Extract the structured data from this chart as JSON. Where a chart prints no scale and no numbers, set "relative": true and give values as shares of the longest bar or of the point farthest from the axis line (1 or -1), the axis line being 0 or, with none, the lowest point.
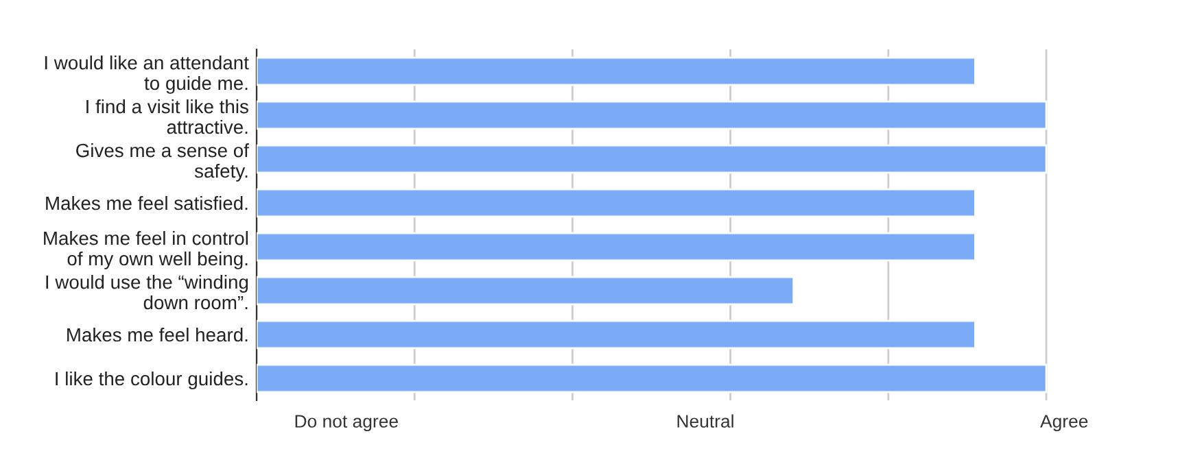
{
  "chart_data": {
    "type": "bar",
    "orientation": "horizontal",
    "relative": true,
    "categories": [
      "I would like an attendant\nto guide me.",
      "I find a visit like this\nattractive.",
      "Gives me a sense of\nsafety.",
      "Makes me feel satisfied.",
      "Makes me feel in control\nof my own well being.",
      "I would use the “winding\ndown room”.",
      "Makes me feel heard.",
      "I like the colour guides."
    ],
    "values": [
      0.91,
      1,
      1,
      0.91,
      0.91,
      0.68,
      0.91,
      1
    ],
    "color": "#7baaf7",
    "annotations": [
      "Do not agree",
      "Neutral",
      "Agree"
    ],
    "grid": true
  }
}
